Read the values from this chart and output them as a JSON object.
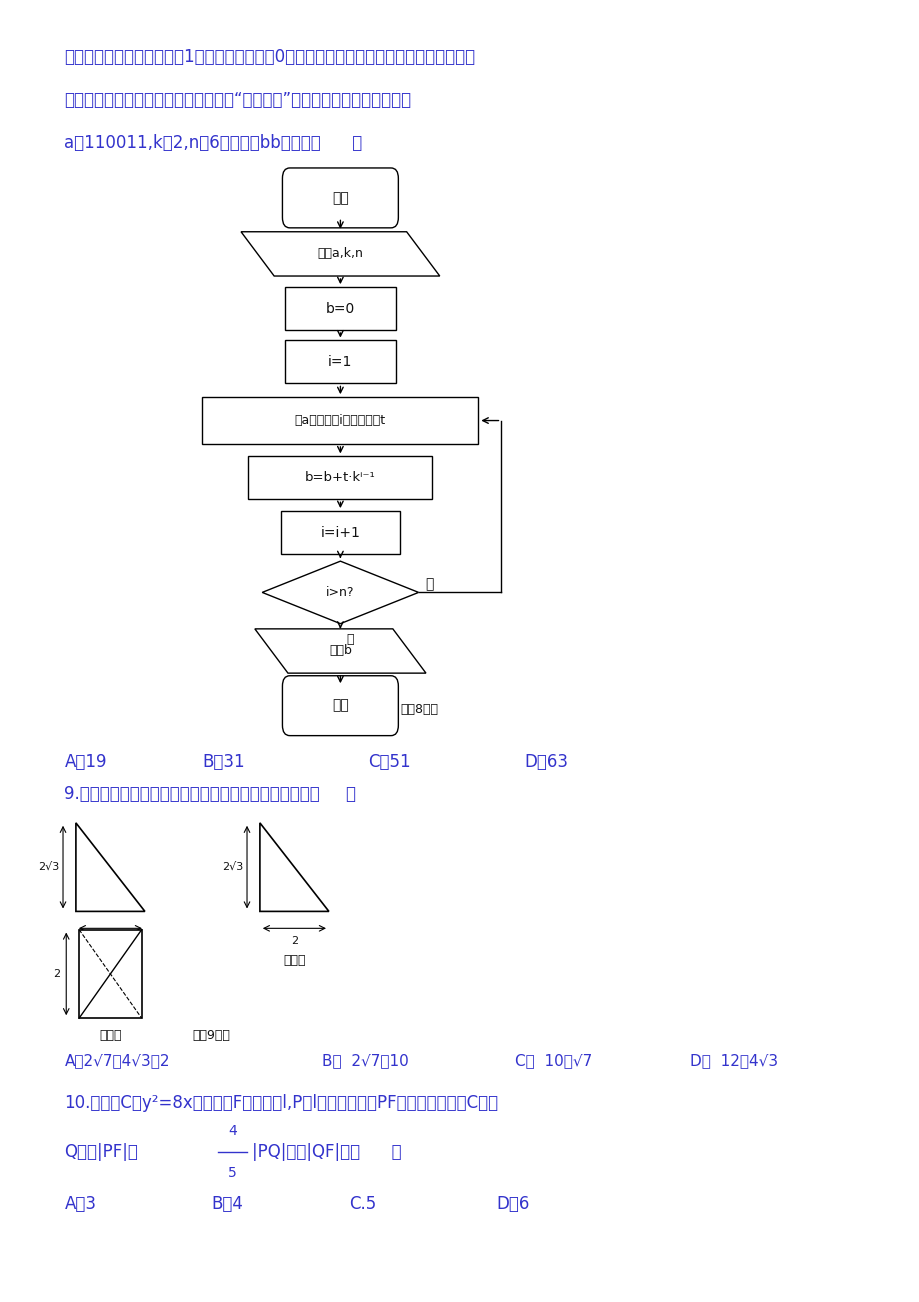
{
  "bg_color": "#ffffff",
  "text_color_blue": "#3333cc",
  "text_color_black": "#000000",
  "text_color_dark": "#111111",
  "page_width": 9.2,
  "page_height": 13.02,
  "top_text_line1": "告，锋火台上点火表示数字1，不点火表示数字0，这蚊含了进位制的思想，如图所示的框图",
  "top_text_line2": "的算法思路就源于我国古代成边官兵的“锋火传信”．执行该程序框图，若输入",
  "formula_line": "a＝110011,k＝2,n＝6，则输出bb的值为（      ）",
  "answer_line_8": [
    "A．19",
    "B．31",
    "C．51",
    "D．63"
  ],
  "q9_text": "9.某三棱锥的三视图如图所示，则该三棱锥的表面积为（     ）",
  "q10_text_line1": "10.抛物线C：y²=8x的焦点为F，准线为l,P是l上一点，连接PF并延长交抛物线C于点",
  "q10_text_line2a": "Q，若|PF|＝",
  "q10_text_line2b": "|PQ|，则|QF|＝（      ）",
  "answer_line_10": [
    "A．3",
    "B．4",
    "C.5",
    "D．6"
  ]
}
